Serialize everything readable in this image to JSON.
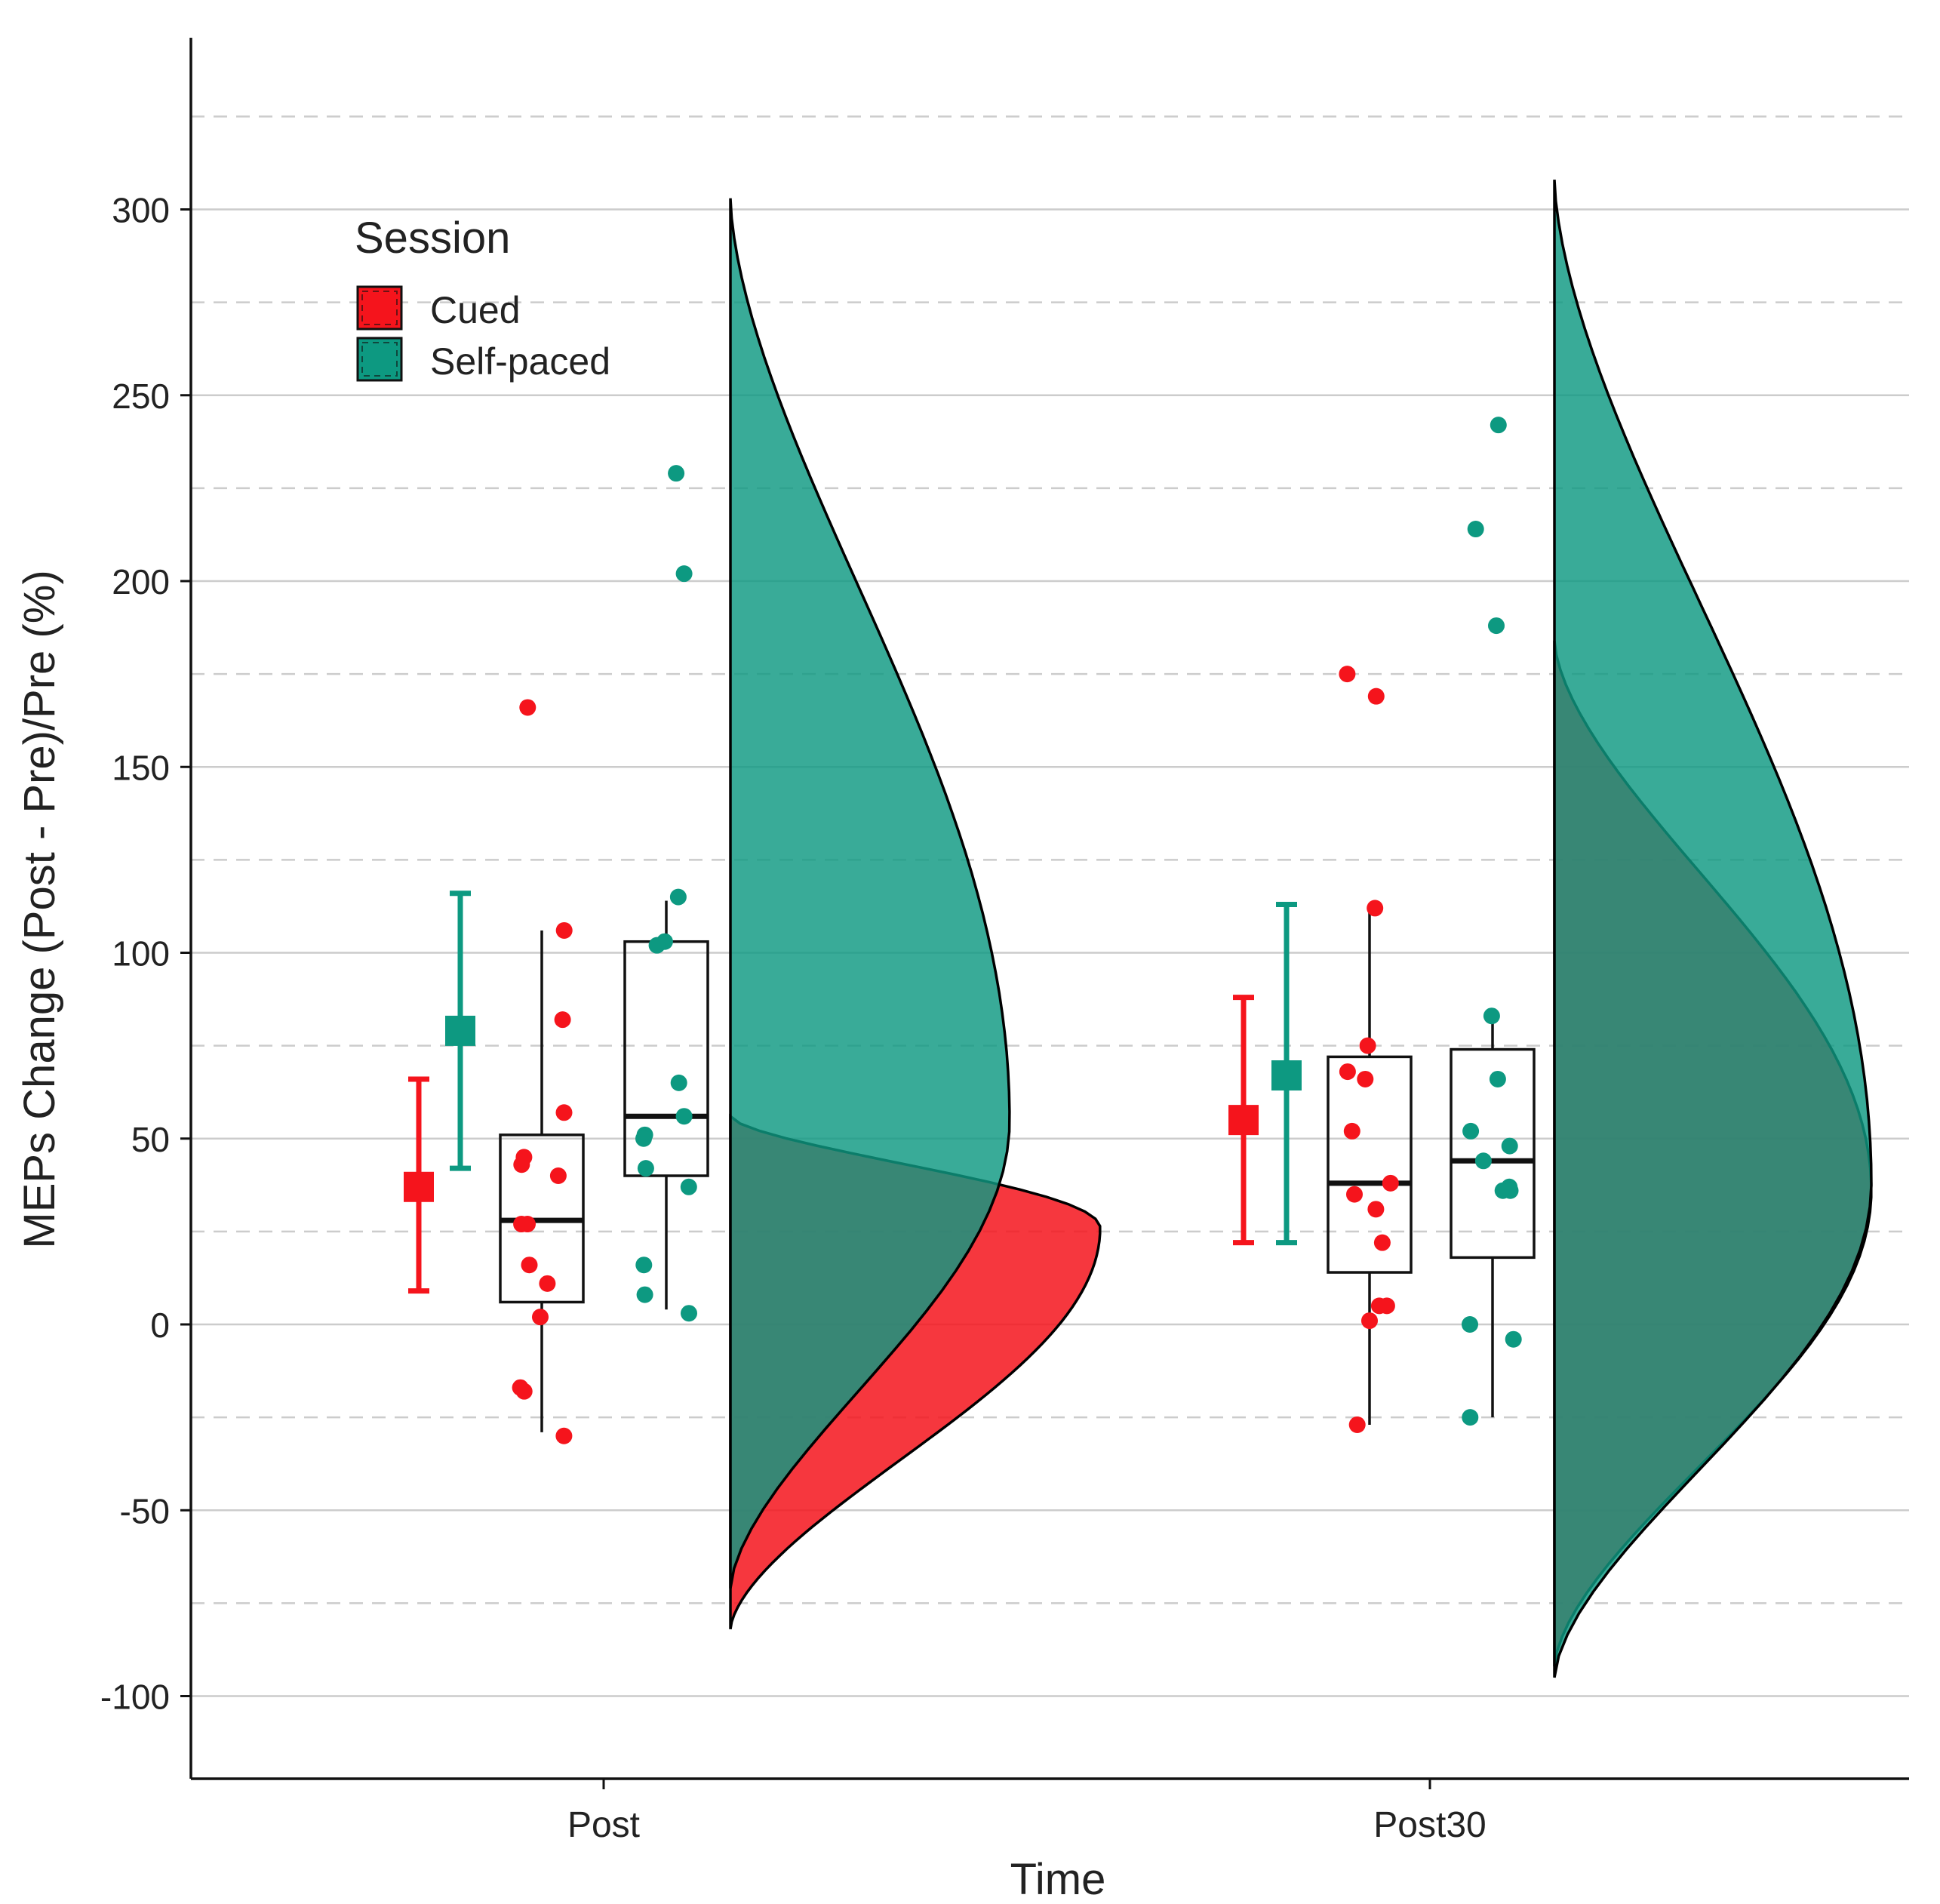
{
  "chart_data": {
    "type": "raincloud",
    "title": "",
    "xlabel": "Time",
    "ylabel": "MEPs Change (Post - Pre)/Pre (%)",
    "ylim": [
      -122,
      348
    ],
    "yticks": [
      -100,
      -50,
      0,
      50,
      100,
      150,
      200,
      250,
      300
    ],
    "ytick_labels": [
      "-100",
      "-50",
      "0",
      "50",
      "100",
      "150",
      "200",
      "250",
      "300"
    ],
    "minor_gridlines": [
      -75,
      -25,
      25,
      75,
      125,
      175,
      225,
      275,
      325
    ],
    "categories": [
      "Post",
      "Post30"
    ],
    "legend": {
      "title": "Session",
      "position": "top-left",
      "entries": [
        "Cued",
        "Self-paced"
      ]
    },
    "colors": {
      "Cued": "#f5141c",
      "Self-paced": "#0d9981",
      "overlap": "#017a68",
      "grid": "#cccccc"
    },
    "series": [
      {
        "name": "Cued",
        "mean_ci": [
          {
            "category": "Post",
            "mean": 37,
            "lower": 9,
            "upper": 66
          },
          {
            "category": "Post30",
            "mean": 55,
            "lower": 22,
            "upper": 88
          }
        ],
        "boxplot": [
          {
            "category": "Post",
            "min": -29,
            "q1": 6,
            "median": 28,
            "q3": 51,
            "max": 106
          },
          {
            "category": "Post30",
            "min": -27,
            "q1": 14,
            "median": 38,
            "q3": 72,
            "max": 112
          }
        ],
        "points": [
          {
            "category": "Post",
            "values": [
              166,
              106,
              82,
              57,
              45,
              43,
              40,
              27,
              27,
              16,
              11,
              2,
              -17,
              -18,
              -30
            ]
          },
          {
            "category": "Post30",
            "values": [
              175,
              169,
              112,
              75,
              68,
              66,
              52,
              38,
              35,
              31,
              22,
              5,
              5,
              1,
              -27
            ]
          }
        ],
        "density": [
          {
            "category": "Post",
            "min": -82,
            "max": 56,
            "peak": 26
          },
          {
            "category": "Post30",
            "min": -92,
            "max": 184,
            "peak": 36
          }
        ]
      },
      {
        "name": "Self-paced",
        "mean_ci": [
          {
            "category": "Post",
            "mean": 79,
            "lower": 42,
            "upper": 116
          },
          {
            "category": "Post30",
            "mean": 67,
            "lower": 22,
            "upper": 113
          }
        ],
        "boxplot": [
          {
            "category": "Post",
            "min": 4,
            "q1": 40,
            "median": 56,
            "q3": 103,
            "max": 114
          },
          {
            "category": "Post30",
            "min": -25,
            "q1": 18,
            "median": 44,
            "q3": 74,
            "max": 83
          }
        ],
        "points": [
          {
            "category": "Post",
            "values": [
              229,
              202,
              115,
              103,
              102,
              65,
              56,
              51,
              50,
              42,
              37,
              16,
              8,
              3
            ]
          },
          {
            "category": "Post30",
            "values": [
              242,
              214,
              188,
              83,
              66,
              52,
              48,
              44,
              37,
              36,
              36,
              0,
              -4,
              -25
            ]
          }
        ],
        "density": [
          {
            "category": "Post",
            "min": -71,
            "max": 303,
            "peak": 55
          },
          {
            "category": "Post30",
            "min": -95,
            "max": 308,
            "peak": 38
          }
        ]
      }
    ]
  }
}
